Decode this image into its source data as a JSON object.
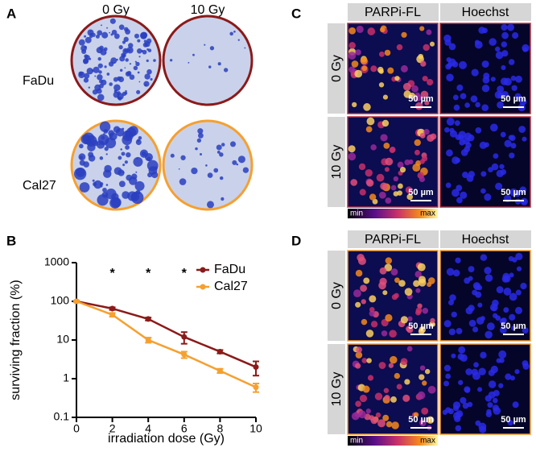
{
  "panel_a": {
    "label": "A",
    "columns": [
      "0 Gy",
      "10 Gy"
    ],
    "rows": [
      "FaDu",
      "Cal27"
    ]
  },
  "panel_b": {
    "label": "B"
  },
  "chart_data": {
    "type": "line",
    "x": [
      0,
      2,
      4,
      6,
      8,
      10
    ],
    "series": [
      {
        "name": "FaDu",
        "color": "#8b1a1a",
        "values": [
          100,
          65,
          35,
          12,
          5,
          2
        ],
        "errors": [
          5,
          5,
          3,
          4,
          0.5,
          0.8
        ]
      },
      {
        "name": "Cal27",
        "color": "#f5a030",
        "values": [
          100,
          45,
          10,
          4.2,
          1.6,
          0.6
        ],
        "errors": [
          5,
          5,
          1.5,
          0.8,
          0.2,
          0.15
        ]
      }
    ],
    "xlabel": "irradiation dose (Gy)",
    "ylabel": "surviving fraction (%)",
    "xlim": [
      0,
      10
    ],
    "xticks": [
      0,
      2,
      4,
      6,
      8,
      10
    ],
    "ylim": [
      0.1,
      1000
    ],
    "yticks": [
      0.1,
      1,
      10,
      100,
      1000
    ],
    "yscale": "log",
    "legend": "upper right",
    "annotations": [
      {
        "text": "*",
        "x": 2
      },
      {
        "text": "*",
        "x": 4
      },
      {
        "text": "*",
        "x": 6
      }
    ]
  },
  "panel_c": {
    "label": "C",
    "columns": [
      "PARPi-FL",
      "Hoechst"
    ],
    "rows": [
      "0 Gy",
      "10 Gy"
    ],
    "scale_bars": [
      "50 µm",
      "50 µm",
      "50 µm",
      "50 µm"
    ],
    "colorbar": {
      "min": "min",
      "max": "max"
    }
  },
  "panel_d": {
    "label": "D",
    "columns": [
      "PARPi-FL",
      "Hoechst"
    ],
    "rows": [
      "0 Gy",
      "10 Gy"
    ],
    "scale_bars": [
      "50 µm",
      "50 µm",
      "50 µm",
      "50 µm"
    ],
    "colorbar": {
      "min": "min",
      "max": "max"
    }
  }
}
